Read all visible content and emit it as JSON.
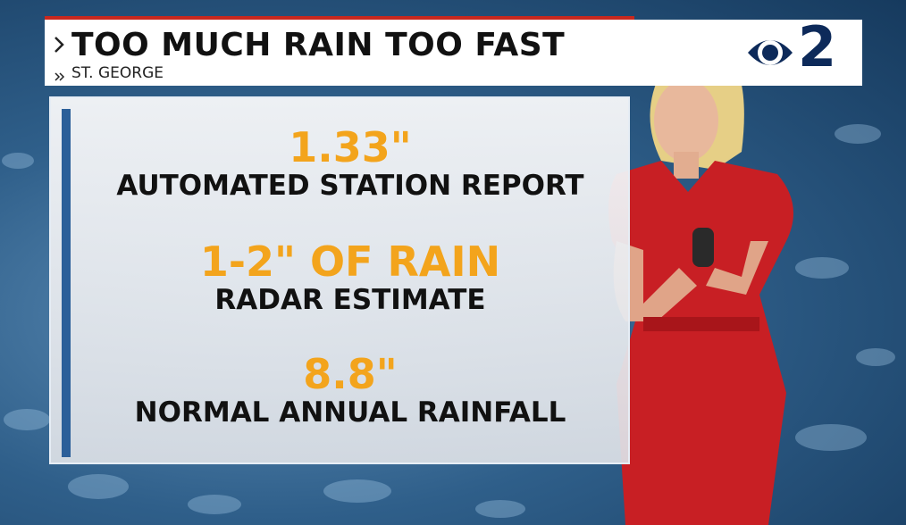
{
  "header": {
    "title": "TOO MUCH RAIN TOO FAST",
    "subtitle": "ST. GEORGE",
    "logo_text": "2"
  },
  "panel": {
    "items": [
      {
        "value": "1.33\"",
        "label": "AUTOMATED STATION REPORT"
      },
      {
        "value": "1-2\" OF RAIN",
        "label": "RADAR ESTIMATE"
      },
      {
        "value": "8.8\"",
        "label": "NORMAL ANNUAL RAINFALL"
      }
    ]
  }
}
